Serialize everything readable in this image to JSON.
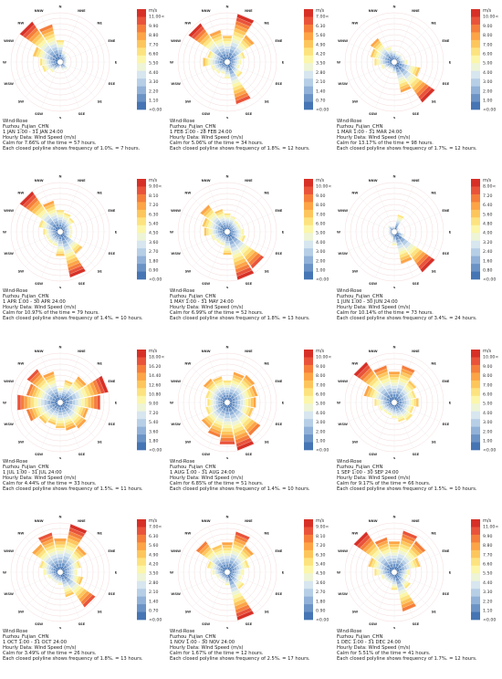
{
  "legend_colors": [
    "#4575b4",
    "#6b93c6",
    "#91b1d8",
    "#b6cfe7",
    "#d7e6ef",
    "#eef4d6",
    "#fbf6a9",
    "#fde37f",
    "#fdc65c",
    "#fca446",
    "#f57e3b",
    "#e9533a",
    "#d73027"
  ],
  "chart_data": [
    {
      "type": "wind-rose",
      "title": "Wind-Rose",
      "location": "Fuzhou_Fujian_CHN",
      "period": "1 JAN 1:00 - 31 JAN 24:00",
      "data_label": "Hourly Data: Wind Speed (m/s)",
      "calm_text": "Calm for 7.66% of the time = 57 hours.",
      "polyline_text": "Each closed polyline shows frequency of 1.0%. = 7 hours.",
      "legend_unit": "m/s",
      "legend_ticks": [
        "11.00<",
        "9.90",
        "8.80",
        "7.70",
        "6.60",
        "5.50",
        "4.40",
        "3.30",
        "2.20",
        "1.10",
        "<0.00"
      ],
      "directions": [
        "N",
        "NNE",
        "NE",
        "ENE",
        "E",
        "ESE",
        "SE",
        "SSE",
        "S",
        "SSW",
        "SW",
        "WSW",
        "W",
        "WNW",
        "NW",
        "NNW"
      ],
      "frequencies": [
        3.8,
        1.8,
        1.5,
        1.2,
        1.1,
        0.9,
        1.6,
        1.4,
        0.8,
        1.3,
        2.2,
        3.2,
        3.5,
        4.8,
        8.4,
        6.6
      ]
    },
    {
      "type": "wind-rose",
      "title": "Wind-Rose",
      "location": "Fuzhou_Fujian_CHN",
      "period": "1 FEB 1:00 - 28 FEB 24:00",
      "data_label": "Hourly Data: Wind Speed (m/s)",
      "calm_text": "Calm for 5.06% of the time = 34 hours.",
      "polyline_text": "Each closed polyline shows frequency of 1.8%. = 12 hours.",
      "legend_unit": "m/s",
      "legend_ticks": [
        "7.00<",
        "6.30",
        "5.60",
        "4.90",
        "4.20",
        "3.50",
        "2.80",
        "2.10",
        "1.40",
        "0.70",
        "<0.00"
      ],
      "directions": [
        "N",
        "NNE",
        "NE",
        "ENE",
        "E",
        "ESE",
        "SE",
        "SSE",
        "S",
        "SSW",
        "SW",
        "WSW",
        "W",
        "WNW",
        "NW",
        "NNW"
      ],
      "frequencies": [
        6.5,
        12.0,
        8.0,
        4.5,
        3.5,
        3.2,
        4.5,
        10.5,
        4.0,
        3.0,
        3.5,
        4.0,
        6.0,
        5.0,
        11.5,
        8.0
      ]
    },
    {
      "type": "wind-rose",
      "title": "Wind-Rose",
      "location": "Fuzhou_Fujian_CHN",
      "period": "1 MAR 1:00 - 31 MAR 24:00",
      "data_label": "Hourly Data: Wind Speed (m/s)",
      "calm_text": "Calm for 13.17% of the time = 98 hours.",
      "polyline_text": "Each closed polyline shows frequency of 1.7%. = 12 hours.",
      "legend_unit": "m/s",
      "legend_ticks": [
        "10.00<",
        "9.00",
        "8.00",
        "7.00",
        "6.00",
        "5.00",
        "4.00",
        "3.00",
        "2.00",
        "1.00",
        "<0.00"
      ],
      "directions": [
        "N",
        "NNE",
        "NE",
        "ENE",
        "E",
        "ESE",
        "SE",
        "SSE",
        "S",
        "SSW",
        "SW",
        "WSW",
        "W",
        "WNW",
        "NW",
        "NNW"
      ],
      "frequencies": [
        2.5,
        2.0,
        2.2,
        2.0,
        3.0,
        6.0,
        11.0,
        7.0,
        2.5,
        1.8,
        2.0,
        3.0,
        4.5,
        5.5,
        6.5,
        3.5
      ]
    },
    {
      "type": "wind-rose",
      "title": "Wind-Rose",
      "location": "Fuzhou_Fujian_CHN",
      "period": "1 APR 1:00 - 30 APR 24:00",
      "data_label": "Hourly Data: Wind Speed (m/s)",
      "calm_text": "Calm for 10.97% of the time = 79 hours.",
      "polyline_text": "Each closed polyline shows frequency of 1.4%. = 10 hours.",
      "legend_unit": "m/s",
      "legend_ticks": [
        "9.00<",
        "8.10",
        "7.20",
        "6.30",
        "5.40",
        "4.50",
        "3.60",
        "2.70",
        "1.80",
        "0.90",
        "<0.00"
      ],
      "directions": [
        "N",
        "NNE",
        "NE",
        "ENE",
        "E",
        "ESE",
        "SE",
        "SSE",
        "S",
        "SSW",
        "SW",
        "WSW",
        "W",
        "WNW",
        "NW",
        "NNW"
      ],
      "frequencies": [
        4.5,
        4.0,
        3.5,
        2.5,
        2.5,
        2.5,
        5.5,
        9.5,
        5.0,
        3.0,
        3.0,
        3.0,
        3.5,
        4.5,
        10.0,
        6.5
      ]
    },
    {
      "type": "wind-rose",
      "title": "Wind-Rose",
      "location": "Fuzhou_Fujian_CHN",
      "period": "1 MAY 1:00 - 31 MAY 24:00",
      "data_label": "Hourly Data: Wind Speed (m/s)",
      "calm_text": "Calm for 6.99% of the time = 52 hours.",
      "polyline_text": "Each closed polyline shows frequency of 1.8%. = 13 hours.",
      "legend_unit": "m/s",
      "legend_ticks": [
        "10.00<",
        "9.00",
        "8.00",
        "7.00",
        "6.00",
        "5.00",
        "4.00",
        "3.00",
        "2.00",
        "1.00",
        "<0.00"
      ],
      "directions": [
        "N",
        "NNE",
        "NE",
        "ENE",
        "E",
        "ESE",
        "SE",
        "SSE",
        "S",
        "SSW",
        "SW",
        "WSW",
        "W",
        "WNW",
        "NW",
        "NNW"
      ],
      "frequencies": [
        4.0,
        3.5,
        3.0,
        3.0,
        3.5,
        4.0,
        9.5,
        10.5,
        5.0,
        3.0,
        3.0,
        3.5,
        5.0,
        5.5,
        7.0,
        5.0
      ]
    },
    {
      "type": "wind-rose",
      "title": "Wind-Rose",
      "location": "Fuzhou_Fujian_CHN",
      "period": "1 JUN 1:00 - 30 JUN 24:00",
      "data_label": "Hourly Data: Wind Speed (m/s)",
      "calm_text": "Calm for 10.14% of the time = 73 hours.",
      "polyline_text": "Each closed polyline shows frequency of 3.4%. = 24 hours.",
      "legend_unit": "m/s",
      "legend_ticks": [
        "8.00<",
        "7.20",
        "6.40",
        "5.60",
        "4.80",
        "4.00",
        "3.20",
        "2.40",
        "1.60",
        "0.80",
        "<0.00"
      ],
      "directions": [
        "N",
        "NNE",
        "NE",
        "ENE",
        "E",
        "ESE",
        "SE",
        "SSE",
        "S",
        "SSW",
        "SW",
        "WSW",
        "W",
        "WNW",
        "NW",
        "NNW"
      ],
      "frequencies": [
        2.0,
        6.5,
        2.0,
        1.5,
        2.0,
        4.0,
        18.0,
        12.0,
        5.0,
        2.5,
        2.0,
        2.0,
        2.0,
        2.0,
        3.0,
        2.0
      ]
    },
    {
      "type": "wind-rose",
      "title": "Wind-Rose",
      "location": "Fuzhou_Fujian_CHN",
      "period": "1 JUL 1:00 - 31 JUL 24:00",
      "data_label": "Hourly Data: Wind Speed (m/s)",
      "calm_text": "Calm for 4.44% of the time = 33 hours.",
      "polyline_text": "Each closed polyline shows frequency of 1.5%. = 11 hours.",
      "legend_unit": "m/s",
      "legend_ticks": [
        "18.00<",
        "16.20",
        "14.40",
        "12.60",
        "10.80",
        "9.00",
        "7.20",
        "5.40",
        "3.60",
        "1.80",
        "<0.00"
      ],
      "directions": [
        "N",
        "NNE",
        "NE",
        "ENE",
        "E",
        "ESE",
        "SE",
        "SSE",
        "S",
        "SSW",
        "SW",
        "WSW",
        "W",
        "WNW",
        "NW",
        "NNW"
      ],
      "frequencies": [
        2.5,
        4.0,
        5.5,
        8.5,
        7.0,
        5.0,
        5.5,
        5.0,
        4.5,
        4.0,
        4.5,
        6.0,
        7.5,
        6.0,
        7.0,
        5.5
      ]
    },
    {
      "type": "wind-rose",
      "title": "Wind-Rose",
      "location": "Fuzhou_Fujian_CHN",
      "period": "1 AUG 1:00 - 31 AUG 24:00",
      "data_label": "Hourly Data: Wind Speed (m/s)",
      "calm_text": "Calm for 6.85% of the time = 51 hours.",
      "polyline_text": "Each closed polyline shows frequency of 1.4%. = 10 hours.",
      "legend_unit": "m/s",
      "legend_ticks": [
        "10.00<",
        "9.00",
        "8.00",
        "7.00",
        "6.00",
        "5.00",
        "4.00",
        "3.00",
        "2.00",
        "1.00",
        "<0.00"
      ],
      "directions": [
        "N",
        "NNE",
        "NE",
        "ENE",
        "E",
        "ESE",
        "SE",
        "SSE",
        "S",
        "SSW",
        "SW",
        "WSW",
        "W",
        "WNW",
        "NW",
        "NNW"
      ],
      "frequencies": [
        5.0,
        7.0,
        7.5,
        7.0,
        6.5,
        6.0,
        9.0,
        11.0,
        9.5,
        8.0,
        7.0,
        5.0,
        4.5,
        5.0,
        6.5,
        6.0
      ]
    },
    {
      "type": "wind-rose",
      "title": "Wind-Rose",
      "location": "Fuzhou_Fujian_CHN",
      "period": "1 SEP 1:00 - 30 SEP 24:00",
      "data_label": "Hourly Data: Wind Speed (m/s)",
      "calm_text": "Calm for 9.17% of the time = 66 hours.",
      "polyline_text": "Each closed polyline shows frequency of 1.5%. = 10 hours.",
      "legend_unit": "m/s",
      "legend_ticks": [
        "10.00<",
        "9.00",
        "8.00",
        "7.00",
        "6.00",
        "5.00",
        "4.00",
        "3.00",
        "2.00",
        "1.00",
        "<0.00"
      ],
      "directions": [
        "N",
        "NNE",
        "NE",
        "ENE",
        "E",
        "ESE",
        "SE",
        "SSE",
        "S",
        "SSW",
        "SW",
        "WSW",
        "W",
        "WNW",
        "NW",
        "NNW"
      ],
      "frequencies": [
        7.0,
        8.5,
        6.0,
        5.0,
        5.5,
        4.5,
        5.0,
        4.5,
        3.5,
        3.0,
        3.0,
        3.5,
        4.5,
        7.0,
        11.0,
        8.5
      ]
    },
    {
      "type": "wind-rose",
      "title": "Wind-Rose",
      "location": "Fuzhou_Fujian_CHN",
      "period": "1 OCT 1:00 - 31 OCT 24:00",
      "data_label": "Hourly Data: Wind Speed (m/s)",
      "calm_text": "Calm for 3.49% of the time = 26 hours.",
      "polyline_text": "Each closed polyline shows frequency of 1.8%. = 13 hours.",
      "legend_unit": "m/s",
      "legend_ticks": [
        "7.00<",
        "6.30",
        "5.60",
        "4.90",
        "4.20",
        "3.50",
        "2.80",
        "2.10",
        "1.40",
        "0.70",
        "<0.00"
      ],
      "directions": [
        "N",
        "NNE",
        "NE",
        "ENE",
        "E",
        "ESE",
        "SE",
        "SSE",
        "S",
        "SSW",
        "SW",
        "WSW",
        "W",
        "WNW",
        "NW",
        "NNW"
      ],
      "frequencies": [
        8.0,
        11.5,
        7.5,
        5.0,
        4.0,
        5.5,
        10.0,
        6.0,
        3.0,
        2.5,
        2.5,
        3.0,
        4.0,
        5.0,
        8.0,
        9.5
      ]
    },
    {
      "type": "wind-rose",
      "title": "Wind-Rose",
      "location": "Fuzhou_Fujian_CHN",
      "period": "1 NOV 1:00 - 30 NOV 24:00",
      "data_label": "Hourly Data: Wind Speed (m/s)",
      "calm_text": "Calm for 1.67% of the time = 12 hours.",
      "polyline_text": "Each closed polyline shows frequency of 2.5%. = 17 hours.",
      "legend_unit": "m/s",
      "legend_ticks": [
        "9.00<",
        "8.10",
        "7.20",
        "6.30",
        "5.40",
        "4.50",
        "3.60",
        "2.70",
        "1.80",
        "0.90",
        "<0.00"
      ],
      "directions": [
        "N",
        "NNE",
        "NE",
        "ENE",
        "E",
        "ESE",
        "SE",
        "SSE",
        "S",
        "SSW",
        "SW",
        "WSW",
        "W",
        "WNW",
        "NW",
        "NNW"
      ],
      "frequencies": [
        8.0,
        11.0,
        8.5,
        6.0,
        4.5,
        4.0,
        5.5,
        13.0,
        3.5,
        2.5,
        2.5,
        3.0,
        4.0,
        5.5,
        10.0,
        7.5
      ]
    },
    {
      "type": "wind-rose",
      "title": "Wind-Rose",
      "location": "Fuzhou_Fujian_CHN",
      "period": "1 DEC 1:00 - 31 DEC 24:00",
      "data_label": "Hourly Data: Wind Speed (m/s)",
      "calm_text": "Calm for 5.51% of the time = 41 hours.",
      "polyline_text": "Each closed polyline shows frequency of 1.7%. = 12 hours.",
      "legend_unit": "m/s",
      "legend_ticks": [
        "11.00<",
        "9.90",
        "8.80",
        "7.70",
        "6.60",
        "5.50",
        "4.40",
        "3.30",
        "2.20",
        "1.10",
        "<0.00"
      ],
      "directions": [
        "N",
        "NNE",
        "NE",
        "ENE",
        "E",
        "ESE",
        "SE",
        "SSE",
        "S",
        "SSW",
        "SW",
        "WSW",
        "W",
        "WNW",
        "NW",
        "NNW"
      ],
      "frequencies": [
        7.0,
        9.5,
        8.5,
        6.0,
        3.5,
        3.0,
        4.5,
        9.0,
        4.0,
        2.5,
        2.5,
        3.0,
        4.5,
        6.0,
        11.0,
        8.0
      ]
    }
  ]
}
